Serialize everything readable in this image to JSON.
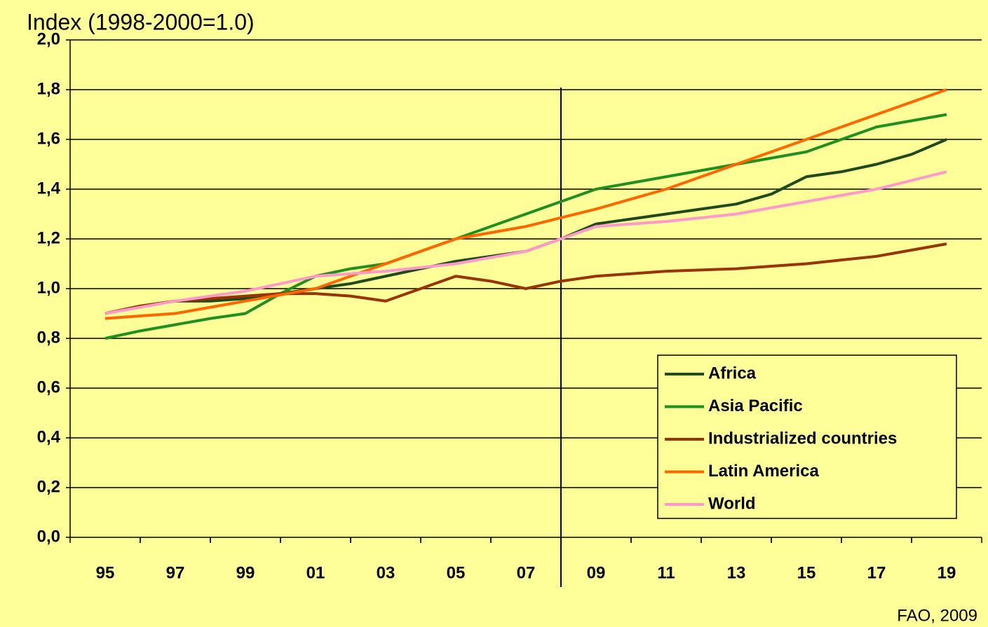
{
  "chart_data": {
    "type": "line",
    "title": "Index (1998-2000=1.0)",
    "source": "FAO, 2009",
    "x": [
      1995,
      1996,
      1997,
      1998,
      1999,
      2000,
      2001,
      2002,
      2003,
      2004,
      2005,
      2006,
      2007,
      2008,
      2009,
      2010,
      2011,
      2012,
      2013,
      2014,
      2015,
      2016,
      2017,
      2018,
      2019
    ],
    "series": [
      {
        "name": "Africa",
        "color": "#1e4a1e",
        "values": [
          0.9,
          0.93,
          0.95,
          0.95,
          0.96,
          0.98,
          1.0,
          1.02,
          1.05,
          1.08,
          1.11,
          1.13,
          1.15,
          1.2,
          1.26,
          1.28,
          1.3,
          1.32,
          1.34,
          1.38,
          1.45,
          1.47,
          1.5,
          1.54,
          1.6
        ]
      },
      {
        "name": "Asia Pacific",
        "color": "#1f8f1f",
        "values": [
          0.8,
          0.83,
          0.855,
          0.88,
          0.9,
          0.98,
          1.05,
          1.08,
          1.1,
          1.15,
          1.2,
          1.25,
          1.3,
          1.35,
          1.4,
          1.425,
          1.45,
          1.475,
          1.5,
          1.525,
          1.55,
          1.6,
          1.65,
          1.675,
          1.7
        ]
      },
      {
        "name": "Industrialized countries",
        "color": "#993300",
        "values": [
          0.9,
          0.93,
          0.95,
          0.96,
          0.97,
          0.98,
          0.98,
          0.97,
          0.95,
          1.0,
          1.05,
          1.03,
          1.0,
          1.03,
          1.05,
          1.06,
          1.07,
          1.075,
          1.08,
          1.09,
          1.1,
          1.115,
          1.13,
          1.155,
          1.18
        ]
      },
      {
        "name": "Latin America",
        "color": "#ff6600",
        "values": [
          0.88,
          0.89,
          0.9,
          0.925,
          0.95,
          0.975,
          1.0,
          1.05,
          1.1,
          1.15,
          1.2,
          1.225,
          1.25,
          1.285,
          1.32,
          1.36,
          1.4,
          1.45,
          1.5,
          1.55,
          1.6,
          1.65,
          1.7,
          1.75,
          1.8
        ]
      },
      {
        "name": "World",
        "color": "#ff99cc",
        "values": [
          0.9,
          0.925,
          0.95,
          0.97,
          0.99,
          1.02,
          1.05,
          1.06,
          1.07,
          1.085,
          1.1,
          1.125,
          1.15,
          1.2,
          1.25,
          1.26,
          1.27,
          1.285,
          1.3,
          1.325,
          1.35,
          1.375,
          1.4,
          1.435,
          1.47
        ]
      }
    ],
    "xlim": [
      1994,
      2020
    ],
    "xticks": [
      {
        "value": 1995,
        "label": "95"
      },
      {
        "value": 1997,
        "label": "97"
      },
      {
        "value": 1999,
        "label": "99"
      },
      {
        "value": 2001,
        "label": "01"
      },
      {
        "value": 2003,
        "label": "03"
      },
      {
        "value": 2005,
        "label": "05"
      },
      {
        "value": 2007,
        "label": "07"
      },
      {
        "value": 2009,
        "label": "09"
      },
      {
        "value": 2011,
        "label": "11"
      },
      {
        "value": 2013,
        "label": "13"
      },
      {
        "value": 2015,
        "label": "15"
      },
      {
        "value": 2017,
        "label": "17"
      },
      {
        "value": 2019,
        "label": "19"
      }
    ],
    "ylim": [
      0,
      2
    ],
    "yticks": [
      {
        "value": 0,
        "label": "0,0"
      },
      {
        "value": 0.2,
        "label": "0,2"
      },
      {
        "value": 0.4,
        "label": "0,4"
      },
      {
        "value": 0.6,
        "label": "0,6"
      },
      {
        "value": 0.8,
        "label": "0,8"
      },
      {
        "value": 1,
        "label": "1,0"
      },
      {
        "value": 1.2,
        "label": "1,2"
      },
      {
        "value": 1.4,
        "label": "1,4"
      },
      {
        "value": 1.6,
        "label": "1,6"
      },
      {
        "value": 1.8,
        "label": "1,8"
      },
      {
        "value": 2,
        "label": "2,0"
      }
    ],
    "grid": true,
    "vline": 2008,
    "legend": "lower right"
  }
}
